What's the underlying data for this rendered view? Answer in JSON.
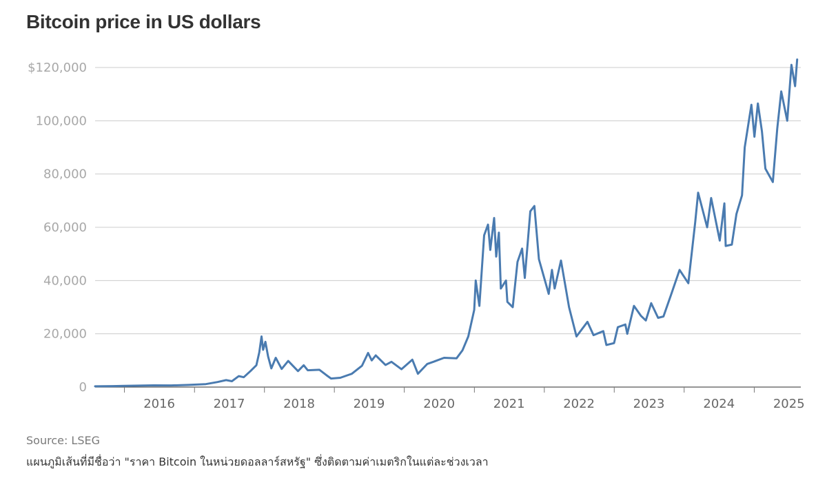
{
  "chart_data": {
    "type": "line",
    "title": "Bitcoin price in US dollars",
    "xlabel": "",
    "ylabel": "",
    "ylim": [
      0,
      120000
    ],
    "xlim": [
      "2015-08-01",
      "2025-09-01"
    ],
    "y_ticks": [
      {
        "value": 0,
        "label": "0"
      },
      {
        "value": 20000,
        "label": "20,000"
      },
      {
        "value": 40000,
        "label": "40,000"
      },
      {
        "value": 60000,
        "label": "60,000"
      },
      {
        "value": 80000,
        "label": "80,000"
      },
      {
        "value": 100000,
        "label": "100,000"
      },
      {
        "value": 120000,
        "label": "$120,000"
      }
    ],
    "x_ticks": [
      "2016",
      "2017",
      "2018",
      "2019",
      "2020",
      "2021",
      "2022",
      "2023",
      "2024",
      "2025"
    ],
    "grid": true,
    "series_color": "#4a7bb0",
    "series": [
      {
        "name": "",
        "points": [
          [
            "2015-08-01",
            280
          ],
          [
            "2015-11-01",
            350
          ],
          [
            "2016-01-01",
            430
          ],
          [
            "2016-06-01",
            650
          ],
          [
            "2016-09-01",
            610
          ],
          [
            "2016-12-01",
            800
          ],
          [
            "2017-03-01",
            1100
          ],
          [
            "2017-05-01",
            1900
          ],
          [
            "2017-06-15",
            2600
          ],
          [
            "2017-07-15",
            2200
          ],
          [
            "2017-08-20",
            4100
          ],
          [
            "2017-09-15",
            3700
          ],
          [
            "2017-10-20",
            6000
          ],
          [
            "2017-11-20",
            8200
          ],
          [
            "2017-12-05",
            13000
          ],
          [
            "2017-12-17",
            19000
          ],
          [
            "2017-12-25",
            14000
          ],
          [
            "2018-01-06",
            17000
          ],
          [
            "2018-01-20",
            11500
          ],
          [
            "2018-02-06",
            7000
          ],
          [
            "2018-03-01",
            11000
          ],
          [
            "2018-04-01",
            6800
          ],
          [
            "2018-05-05",
            9800
          ],
          [
            "2018-06-25",
            6000
          ],
          [
            "2018-07-25",
            8200
          ],
          [
            "2018-08-15",
            6300
          ],
          [
            "2018-10-15",
            6500
          ],
          [
            "2018-11-20",
            4500
          ],
          [
            "2018-12-15",
            3200
          ],
          [
            "2019-02-01",
            3500
          ],
          [
            "2019-04-02",
            5000
          ],
          [
            "2019-05-25",
            8000
          ],
          [
            "2019-06-26",
            12800
          ],
          [
            "2019-07-15",
            10000
          ],
          [
            "2019-08-05",
            11900
          ],
          [
            "2019-09-25",
            8300
          ],
          [
            "2019-10-26",
            9500
          ],
          [
            "2019-12-17",
            6700
          ],
          [
            "2020-02-12",
            10300
          ],
          [
            "2020-03-12",
            5000
          ],
          [
            "2020-04-30",
            8700
          ],
          [
            "2020-06-01",
            9500
          ],
          [
            "2020-07-27",
            11000
          ],
          [
            "2020-09-30",
            10800
          ],
          [
            "2020-10-31",
            13800
          ],
          [
            "2020-11-30",
            19000
          ],
          [
            "2020-12-31",
            29000
          ],
          [
            "2021-01-08",
            40000
          ],
          [
            "2021-01-27",
            30500
          ],
          [
            "2021-02-21",
            57000
          ],
          [
            "2021-03-13",
            61000
          ],
          [
            "2021-03-25",
            51500
          ],
          [
            "2021-04-14",
            63500
          ],
          [
            "2021-04-25",
            49000
          ],
          [
            "2021-05-09",
            58000
          ],
          [
            "2021-05-19",
            37000
          ],
          [
            "2021-06-15",
            40000
          ],
          [
            "2021-06-22",
            32000
          ],
          [
            "2021-07-20",
            30000
          ],
          [
            "2021-08-14",
            47000
          ],
          [
            "2021-09-07",
            52000
          ],
          [
            "2021-09-21",
            41000
          ],
          [
            "2021-10-20",
            66000
          ],
          [
            "2021-11-10",
            68000
          ],
          [
            "2021-12-04",
            48000
          ],
          [
            "2022-01-24",
            35000
          ],
          [
            "2022-02-10",
            44000
          ],
          [
            "2022-02-24",
            37000
          ],
          [
            "2022-03-29",
            47500
          ],
          [
            "2022-05-10",
            30000
          ],
          [
            "2022-06-18",
            19000
          ],
          [
            "2022-08-14",
            24500
          ],
          [
            "2022-09-15",
            19500
          ],
          [
            "2022-11-05",
            21000
          ],
          [
            "2022-11-21",
            15800
          ],
          [
            "2022-12-31",
            16500
          ],
          [
            "2023-01-20",
            22500
          ],
          [
            "2023-02-28",
            23500
          ],
          [
            "2023-03-10",
            20000
          ],
          [
            "2023-04-14",
            30500
          ],
          [
            "2023-05-20",
            26800
          ],
          [
            "2023-06-15",
            25000
          ],
          [
            "2023-07-13",
            31500
          ],
          [
            "2023-08-18",
            26000
          ],
          [
            "2023-09-15",
            26500
          ],
          [
            "2023-10-24",
            34500
          ],
          [
            "2023-12-08",
            44000
          ],
          [
            "2024-01-23",
            39000
          ],
          [
            "2024-02-28",
            62000
          ],
          [
            "2024-03-14",
            73000
          ],
          [
            "2024-04-30",
            60000
          ],
          [
            "2024-05-21",
            71000
          ],
          [
            "2024-07-05",
            55000
          ],
          [
            "2024-07-29",
            69000
          ],
          [
            "2024-08-05",
            53000
          ],
          [
            "2024-09-06",
            53500
          ],
          [
            "2024-09-30",
            65000
          ],
          [
            "2024-10-29",
            72000
          ],
          [
            "2024-11-12",
            90000
          ],
          [
            "2024-12-17",
            106000
          ],
          [
            "2025-01-02",
            94000
          ],
          [
            "2025-01-20",
            106500
          ],
          [
            "2025-02-10",
            96000
          ],
          [
            "2025-02-28",
            82000
          ],
          [
            "2025-04-08",
            77000
          ],
          [
            "2025-05-01",
            97000
          ],
          [
            "2025-05-22",
            111000
          ],
          [
            "2025-06-22",
            100000
          ],
          [
            "2025-07-14",
            121000
          ],
          [
            "2025-08-02",
            113000
          ],
          [
            "2025-08-13",
            123000
          ]
        ]
      }
    ]
  },
  "source": "Source: LSEG",
  "caption": "แผนภูมิเส้นที่มีชื่อว่า \"ราคา Bitcoin ในหน่วยดอลลาร์สหรัฐ\" ซึ่งติดตามค่าเมตริกในแต่ละช่วงเวลา"
}
